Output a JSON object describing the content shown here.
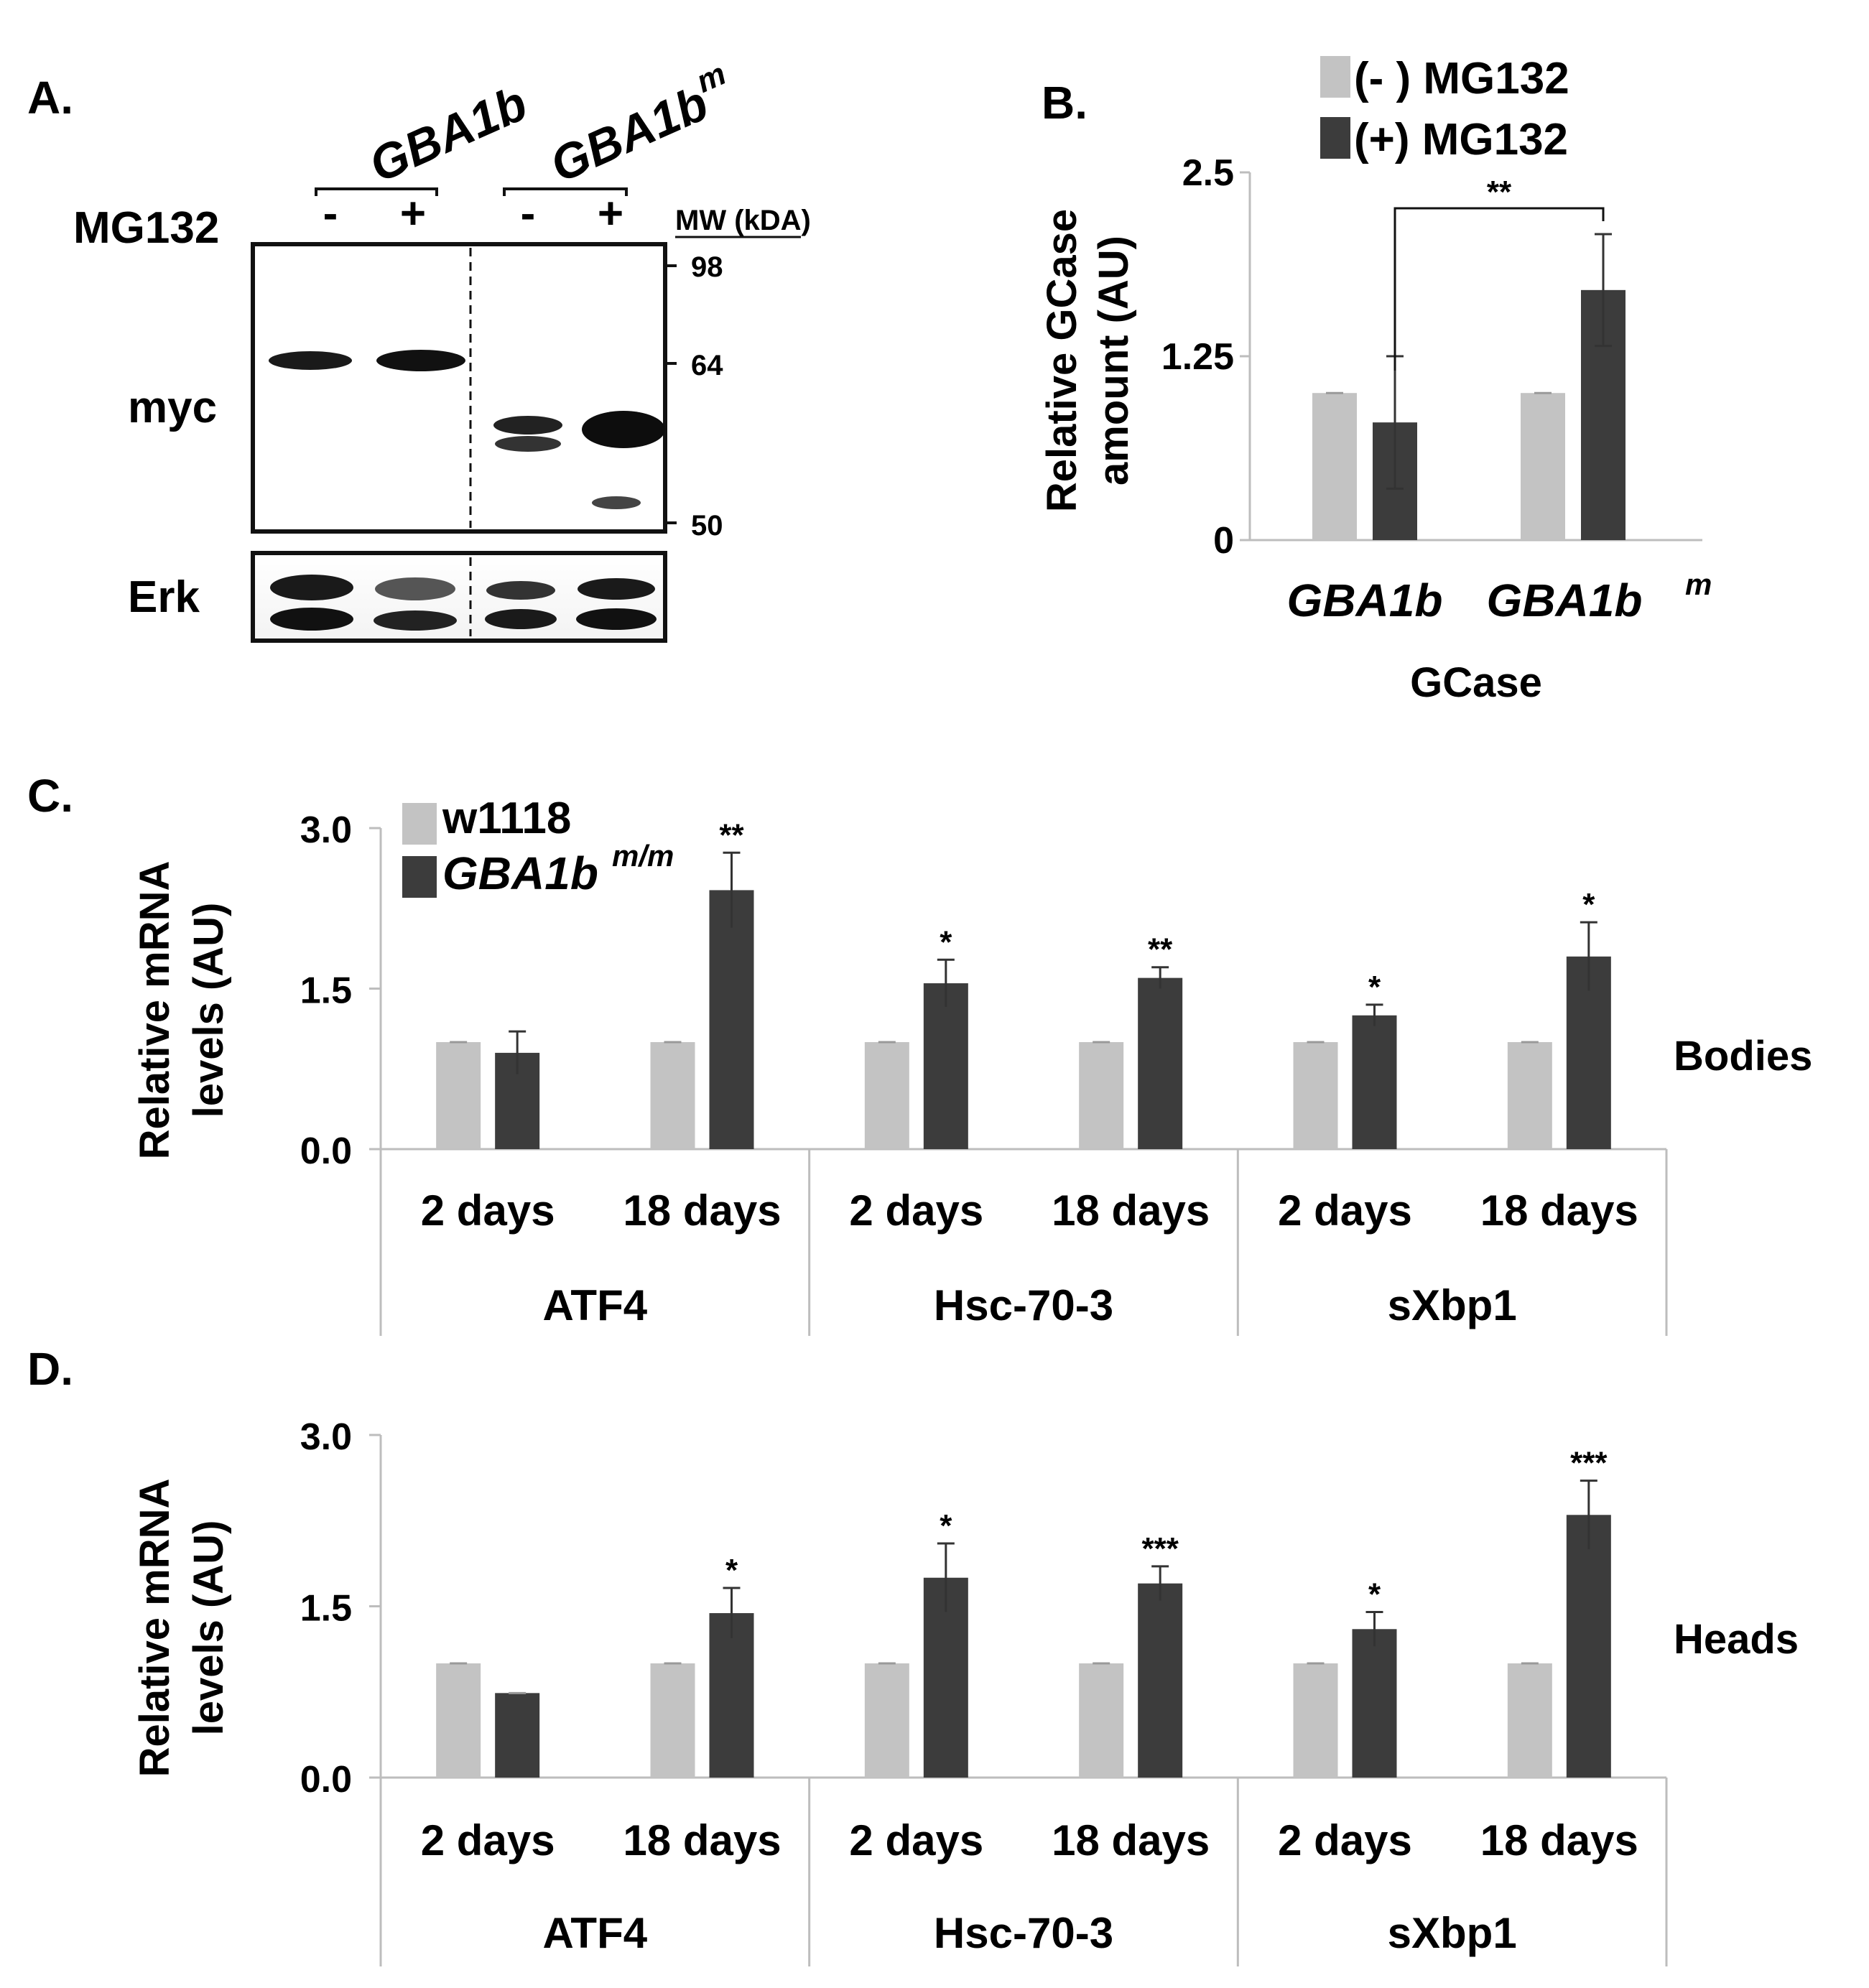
{
  "colors": {
    "light_bar": "#c3c3c3",
    "dark_bar": "#3c3c3c",
    "axis": "#bdbdbd",
    "text": "#111111"
  },
  "panel_a": {
    "letter": "A.",
    "group_labels": [
      "GBA1b",
      "GBA1b",
      "m"
    ],
    "treatment_label": "MG132",
    "lane_signs": [
      "-",
      "+",
      "-",
      "+"
    ],
    "mw_header": "MW (kDA)",
    "mw_markers": [
      "98",
      "64",
      "50"
    ],
    "blot_labels": [
      "myc",
      "Erk"
    ]
  },
  "chart_data": [
    {
      "panel": "B.",
      "type": "bar",
      "categories": [
        "GBA1b",
        "GBA1b"
      ],
      "category_superscripts": [
        "",
        "m"
      ],
      "xlabel": "GCase",
      "ylabel": "Relative GCase amount (AU)",
      "ylim": [
        0,
        2.5
      ],
      "yticks": [
        "2.5",
        "1.25",
        "0"
      ],
      "series": [
        {
          "name": "(- ) MG132",
          "color": "#c3c3c3",
          "values": [
            1.0,
            1.0
          ],
          "errors": [
            0.0,
            0.0
          ]
        },
        {
          "name": "(+) MG132",
          "color": "#3c3c3c",
          "values": [
            0.8,
            1.7
          ],
          "errors": [
            0.45,
            0.38
          ]
        }
      ],
      "annotations": [
        {
          "text": "**",
          "bracket_between": [
            0,
            1
          ]
        }
      ],
      "grid": false,
      "legend": "top"
    },
    {
      "panel": "C.",
      "type": "bar",
      "groups": [
        "ATF4",
        "Hsc-70-3",
        "sXbp1"
      ],
      "categories": [
        "2 days",
        "18 days",
        "2 days",
        "18 days",
        "2 days",
        "18 days"
      ],
      "ylabel": "Relative mRNA levels (AU)",
      "ylim": [
        0,
        3.0
      ],
      "yticks": [
        "3.0",
        "1.5",
        "0.0"
      ],
      "side_label": "Bodies",
      "series": [
        {
          "name": "w1118",
          "color": "#c3c3c3",
          "values": [
            1.0,
            1.0,
            1.0,
            1.0,
            1.0,
            1.0
          ],
          "errors": [
            0,
            0,
            0,
            0,
            0,
            0
          ]
        },
        {
          "name": "GBA1b",
          "name_superscript": "m/m",
          "color": "#3c3c3c",
          "values": [
            0.9,
            2.42,
            1.55,
            1.6,
            1.25,
            1.8
          ],
          "errors": [
            0.2,
            0.35,
            0.22,
            0.1,
            0.1,
            0.32
          ]
        }
      ],
      "significance": [
        "",
        "**",
        "*",
        "**",
        "*",
        "*"
      ],
      "grid": false,
      "legend": "top-left"
    },
    {
      "panel": "D.",
      "type": "bar",
      "groups": [
        "ATF4",
        "Hsc-70-3",
        "sXbp1"
      ],
      "categories": [
        "2 days",
        "18 days",
        "2 days",
        "18 days",
        "2 days",
        "18 days"
      ],
      "ylabel": "Relative mRNA levels (AU)",
      "ylim": [
        0,
        3.0
      ],
      "yticks": [
        "3.0",
        "1.5",
        "0.0"
      ],
      "side_label": "Heads",
      "series": [
        {
          "color": "#c3c3c3",
          "values": [
            1.0,
            1.0,
            1.0,
            1.0,
            1.0,
            1.0
          ],
          "errors": [
            0,
            0,
            0,
            0,
            0,
            0
          ]
        },
        {
          "color": "#3c3c3c",
          "values": [
            0.74,
            1.44,
            1.75,
            1.7,
            1.3,
            2.3
          ],
          "errors": [
            0,
            0.22,
            0.3,
            0.15,
            0.15,
            0.3
          ]
        }
      ],
      "significance": [
        "",
        "*",
        "*",
        "***",
        "*",
        "***"
      ],
      "grid": false
    }
  ]
}
